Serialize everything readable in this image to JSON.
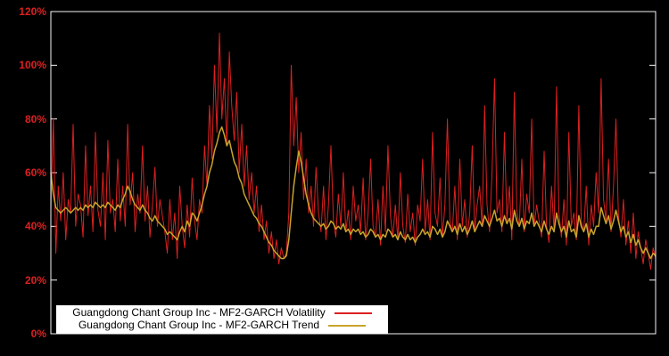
{
  "figure": {
    "background": "#000000",
    "border_color": "#f5f5f5"
  },
  "axes": {
    "y_ticks": [
      "0%",
      "20%",
      "40%",
      "60%",
      "80%",
      "100%",
      "120%"
    ],
    "tick_label_color": "#dd2020"
  },
  "legend": {
    "background": "#ffffff",
    "text_color": "#000000"
  },
  "chart_data": {
    "type": "line",
    "title": "",
    "xlabel": "",
    "ylabel": "",
    "ylim": [
      0,
      120
    ],
    "y_tick_step": 20,
    "y_unit": "%",
    "grid": false,
    "legend_position": "bottom-left",
    "series": [
      {
        "name": "Guangdong Chant Group Inc - MF2-GARCH Volatility",
        "color": "#dd2020",
        "values": [
          46,
          80,
          30,
          55,
          42,
          60,
          35,
          50,
          45,
          78,
          40,
          52,
          48,
          36,
          70,
          44,
          55,
          38,
          75,
          46,
          40,
          60,
          35,
          72,
          45,
          50,
          38,
          65,
          42,
          55,
          40,
          78,
          48,
          60,
          38,
          52,
          45,
          70,
          42,
          55,
          36,
          48,
          62,
          40,
          50,
          44,
          38,
          30,
          50,
          35,
          45,
          28,
          55,
          40,
          32,
          48,
          36,
          58,
          42,
          35,
          50,
          45,
          70,
          55,
          85,
          65,
          100,
          75,
          112,
          80,
          95,
          70,
          105,
          85,
          72,
          90,
          60,
          78,
          55,
          70,
          50,
          60,
          45,
          55,
          38,
          48,
          35,
          42,
          30,
          38,
          28,
          35,
          26,
          32,
          28,
          30,
          45,
          100,
          70,
          88,
          60,
          75,
          50,
          65,
          45,
          55,
          40,
          62,
          45,
          38,
          55,
          35,
          48,
          70,
          42,
          36,
          52,
          40,
          60,
          38,
          46,
          35,
          55,
          42,
          48,
          38,
          58,
          35,
          45,
          65,
          40,
          36,
          50,
          33,
          55,
          38,
          70,
          44,
          36,
          48,
          35,
          60,
          40,
          34,
          52,
          38,
          45,
          33,
          48,
          42,
          65,
          38,
          50,
          35,
          75,
          45,
          40,
          58,
          36,
          48,
          80,
          42,
          38,
          55,
          35,
          65,
          40,
          50,
          36,
          45,
          70,
          38,
          48,
          55,
          40,
          85,
          48,
          38,
          60,
          95,
          45,
          50,
          38,
          75,
          42,
          55,
          35,
          90,
          46,
          40,
          65,
          38,
          52,
          45,
          80,
          40,
          48,
          42,
          36,
          68,
          40,
          34,
          55,
          38,
          92,
          45,
          36,
          50,
          33,
          75,
          40,
          45,
          35,
          85,
          42,
          38,
          55,
          33,
          48,
          40,
          60,
          45,
          95,
          50,
          42,
          65,
          38,
          55,
          80,
          44,
          36,
          50,
          33,
          42,
          30,
          45,
          28,
          38,
          32,
          26,
          35,
          30,
          24,
          32,
          28
        ]
      },
      {
        "name": "Guangdong Chant Group Inc - MF2-GARCH Trend",
        "color": "#c9a42b",
        "values": [
          60,
          52,
          47,
          46,
          45,
          46,
          47,
          46,
          45,
          46,
          47,
          46,
          47,
          46,
          48,
          47,
          48,
          47,
          49,
          48,
          47,
          48,
          47,
          49,
          48,
          47,
          46,
          48,
          47,
          50,
          52,
          55,
          53,
          50,
          48,
          47,
          46,
          48,
          46,
          45,
          43,
          42,
          44,
          42,
          41,
          40,
          39,
          37,
          38,
          37,
          36,
          35,
          38,
          40,
          38,
          42,
          40,
          45,
          44,
          42,
          45,
          48,
          52,
          55,
          60,
          63,
          68,
          71,
          75,
          77,
          74,
          70,
          72,
          68,
          64,
          62,
          58,
          56,
          52,
          50,
          48,
          46,
          44,
          43,
          41,
          40,
          38,
          36,
          34,
          33,
          31,
          30,
          29,
          28,
          28,
          29,
          35,
          45,
          55,
          62,
          68,
          64,
          58,
          52,
          48,
          45,
          43,
          42,
          41,
          40,
          41,
          39,
          40,
          42,
          41,
          39,
          40,
          39,
          41,
          38,
          39,
          37,
          39,
          38,
          39,
          37,
          38,
          36,
          37,
          39,
          38,
          36,
          37,
          35,
          37,
          36,
          39,
          38,
          36,
          37,
          35,
          38,
          36,
          35,
          37,
          35,
          36,
          34,
          36,
          37,
          39,
          37,
          38,
          36,
          40,
          39,
          37,
          39,
          36,
          38,
          42,
          40,
          38,
          40,
          37,
          41,
          38,
          40,
          37,
          39,
          42,
          38,
          40,
          42,
          40,
          44,
          42,
          40,
          43,
          46,
          42,
          43,
          40,
          44,
          41,
          43,
          39,
          46,
          42,
          40,
          43,
          39,
          42,
          41,
          45,
          40,
          42,
          40,
          38,
          42,
          39,
          37,
          40,
          38,
          45,
          41,
          38,
          40,
          36,
          42,
          38,
          39,
          36,
          44,
          40,
          38,
          41,
          36,
          39,
          37,
          40,
          40,
          47,
          44,
          41,
          44,
          39,
          42,
          46,
          42,
          38,
          40,
          36,
          38,
          34,
          37,
          33,
          35,
          32,
          30,
          32,
          30,
          28,
          30,
          29
        ]
      }
    ]
  }
}
